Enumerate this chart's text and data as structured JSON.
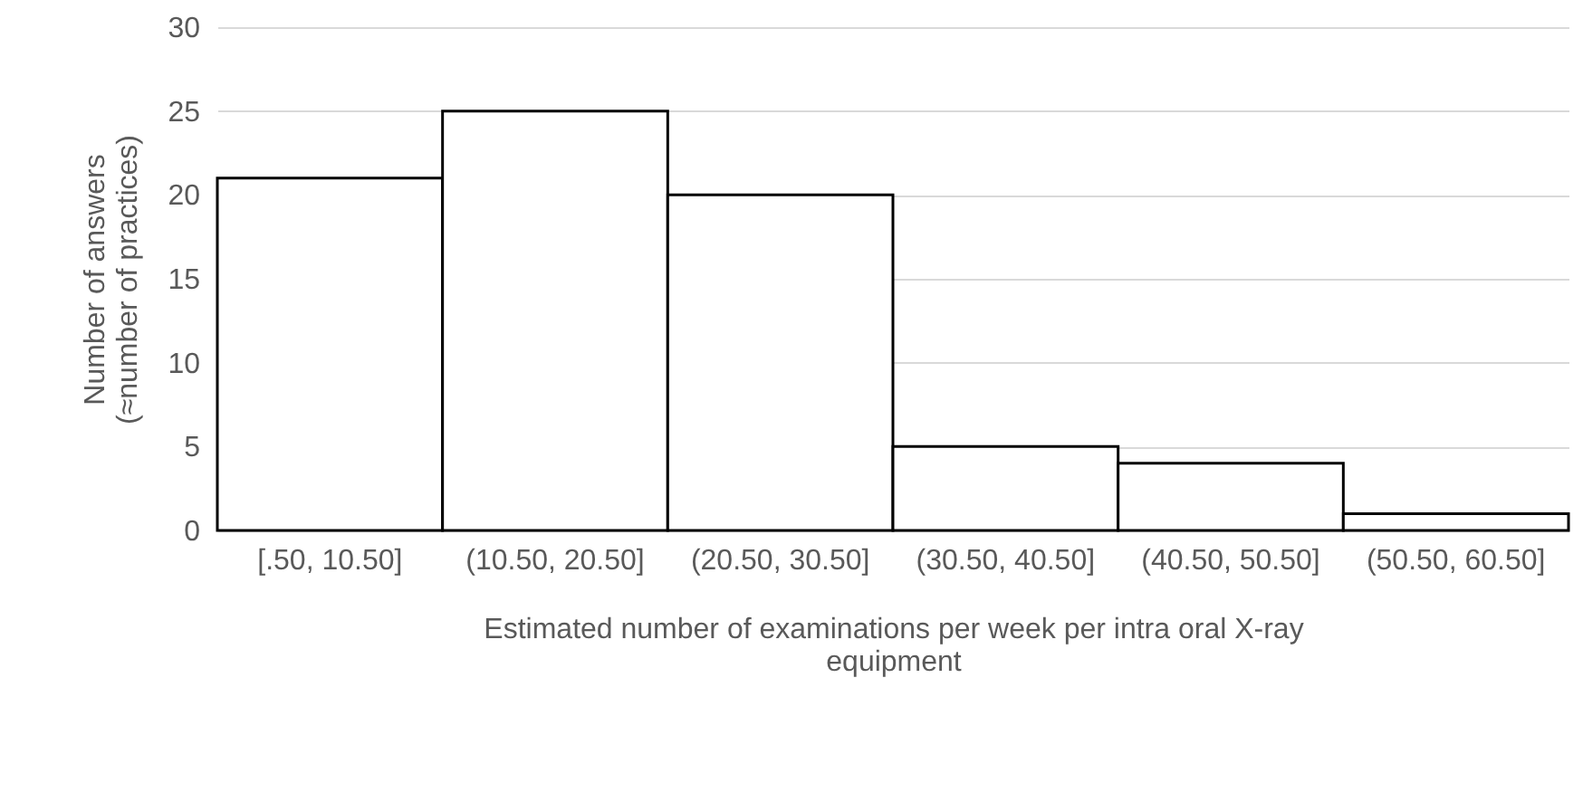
{
  "chart_data": {
    "type": "bar",
    "xlabel": "Estimated number of examinations per week per intra oral X-ray equipment",
    "ylabel": "Number of answers\n(≈number of practices)",
    "categories": [
      "[.50, 10.50]",
      "(10.50, 20.50]",
      "(20.50, 30.50]",
      "(30.50, 40.50]",
      "(40.50, 50.50]",
      "(50.50, 60.50]"
    ],
    "values": [
      21,
      25,
      20,
      5,
      4,
      1
    ],
    "color": "#ffffff",
    "ylim": [
      0,
      30
    ],
    "yticks": [
      0,
      5,
      10,
      15,
      20,
      25,
      30
    ],
    "grid": "y"
  }
}
